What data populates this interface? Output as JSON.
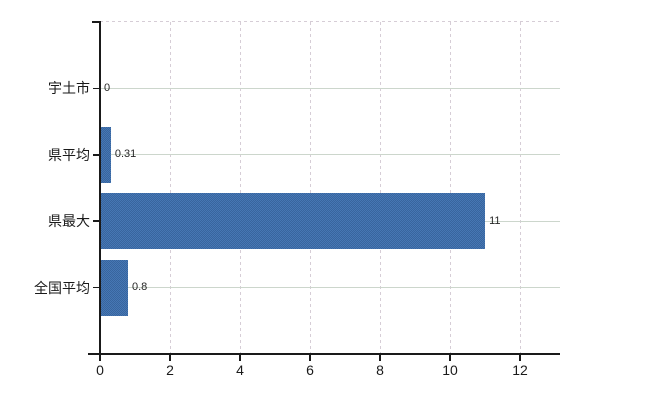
{
  "chart_data": {
    "type": "bar",
    "orientation": "horizontal",
    "title": "",
    "xlabel": "",
    "ylabel": "",
    "categories": [
      "宇土市",
      "県平均",
      "県最大",
      "全国平均"
    ],
    "values": [
      0,
      0.31,
      11,
      0.8
    ],
    "value_labels": [
      "0",
      "0.31",
      "11",
      "0.8"
    ],
    "xlim": [
      0,
      13.14
    ],
    "xticks": [
      0,
      2,
      4,
      6,
      8,
      10,
      12
    ],
    "xtick_labels": [
      "0",
      "2",
      "4",
      "6",
      "8",
      "10",
      "12"
    ],
    "grid": {
      "horizontal_style": "solid",
      "vertical_style": "dashed",
      "top_border_style": "dashed"
    },
    "legend_position": "none",
    "colors": {
      "background": "#ffffff",
      "bar": "#3f6eaa",
      "bar_dither_light": "#4677b4",
      "bar_dither_dark": "#38659e",
      "axis": "#1a1a1a",
      "grid_horizontal": "#ccd6cc",
      "grid_vertical": "#d6cdd6",
      "value_label": "#262626",
      "tick_label": "#1a1a1a"
    }
  }
}
